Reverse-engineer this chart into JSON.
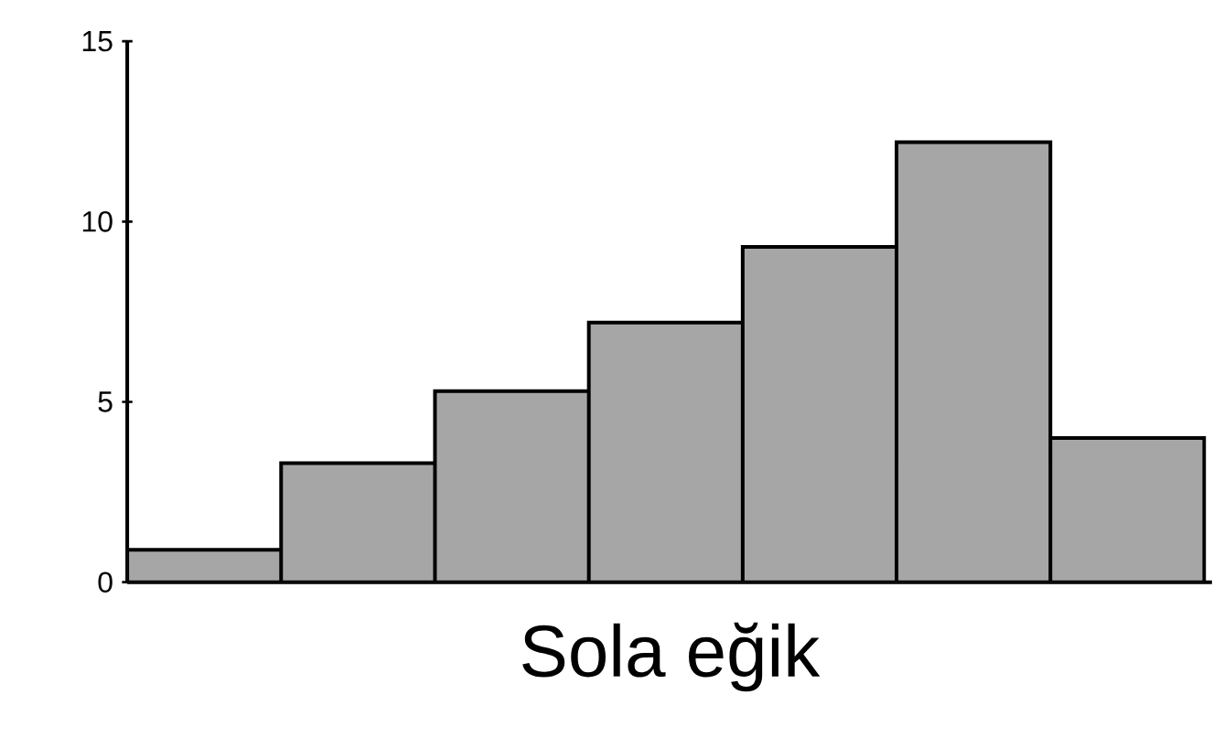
{
  "chart_data": {
    "type": "bar",
    "xlabel": "Sola eğik",
    "categories": [
      null,
      null,
      null,
      null,
      null,
      null,
      null
    ],
    "values": [
      0.9,
      3.3,
      5.3,
      7.2,
      9.3,
      12.2,
      4.0
    ],
    "color": "#a6a6a6",
    "ylim": [
      0,
      15
    ],
    "yticks": [
      0,
      5,
      10,
      15
    ],
    "grid": false
  }
}
